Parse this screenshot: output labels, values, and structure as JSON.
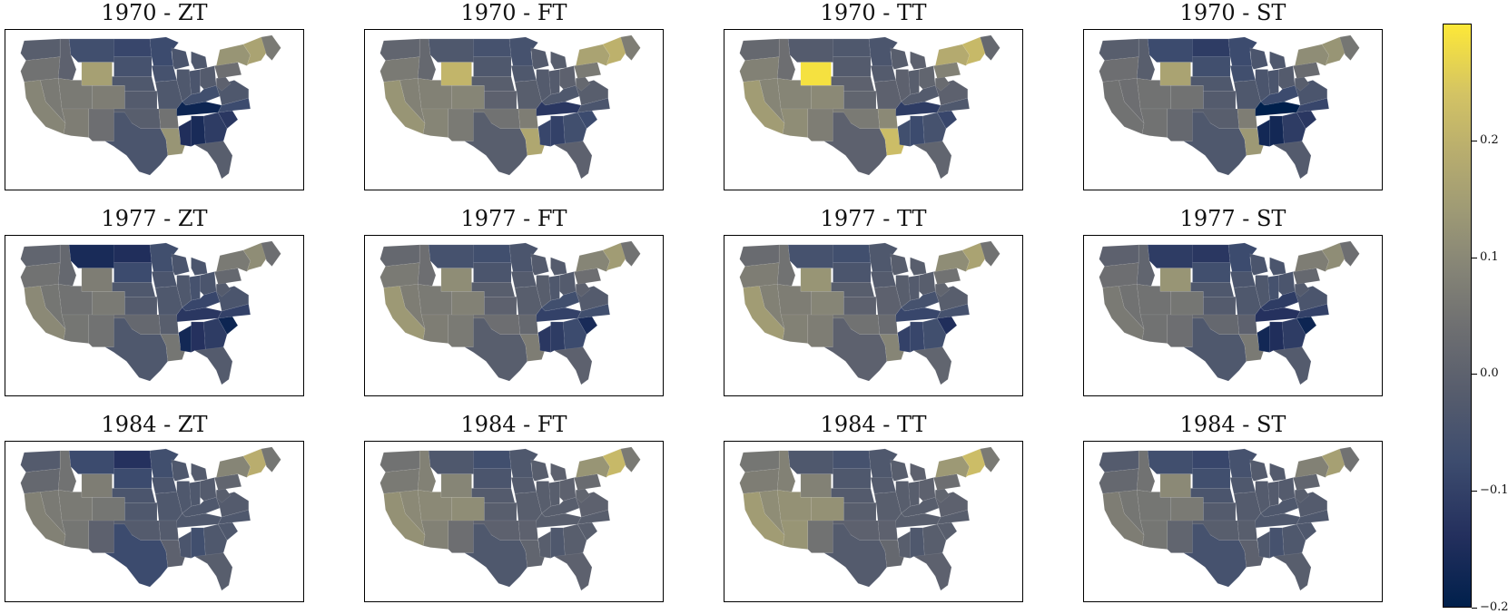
{
  "panels": [
    {
      "title": "1970 - ZT",
      "vals": {
        "WA": -0.03,
        "OR": 0.03,
        "CA": 0.08,
        "NV": 0.05,
        "ID": -0.02,
        "MT": -0.08,
        "WY": 0.15,
        "UT": 0.05,
        "AZ": 0.06,
        "NM": 0.02,
        "CO": 0.06,
        "ND": -0.1,
        "SD": -0.07,
        "NE": -0.05,
        "KS": -0.04,
        "OK": -0.03,
        "TX": -0.06,
        "MN": -0.09,
        "IA": -0.07,
        "MO": -0.05,
        "AR": 0.03,
        "LA": 0.12,
        "WI": -0.06,
        "IL": -0.05,
        "MS": -0.15,
        "MI": -0.05,
        "IN": -0.06,
        "OH": -0.04,
        "KY": -0.08,
        "TN": -0.18,
        "AL": -0.16,
        "GA": -0.12,
        "FL": -0.03,
        "SC": -0.13,
        "NC": -0.09,
        "VA": -0.05,
        "WV": -0.02,
        "PA": 0.02,
        "NY": 0.12,
        "NE_": 0.16,
        "ME": 0.05
      }
    },
    {
      "title": "1970 - FT",
      "vals": {
        "WA": -0.01,
        "OR": 0.05,
        "CA": 0.12,
        "NV": 0.07,
        "ID": 0.0,
        "MT": -0.05,
        "WY": 0.21,
        "UT": 0.07,
        "AZ": 0.08,
        "NM": 0.05,
        "CO": 0.08,
        "ND": -0.07,
        "SD": -0.05,
        "NE": -0.03,
        "KS": -0.02,
        "OK": 0.03,
        "TX": -0.03,
        "MN": -0.07,
        "IA": -0.05,
        "MO": -0.03,
        "AR": 0.06,
        "LA": 0.17,
        "WI": -0.04,
        "IL": -0.04,
        "MS": -0.1,
        "MI": -0.03,
        "IN": -0.04,
        "OH": -0.02,
        "KY": -0.05,
        "TN": -0.13,
        "AL": -0.11,
        "GA": -0.08,
        "FL": -0.02,
        "SC": -0.09,
        "NC": -0.06,
        "VA": -0.03,
        "WV": 0.0,
        "PA": 0.05,
        "NY": 0.16,
        "NE_": 0.2,
        "ME": 0.06
      }
    },
    {
      "title": "1970 - TT",
      "vals": {
        "WA": 0.0,
        "OR": 0.07,
        "CA": 0.14,
        "NV": 0.08,
        "ID": 0.02,
        "MT": -0.04,
        "WY": 0.29,
        "UT": 0.08,
        "AZ": 0.1,
        "NM": 0.06,
        "CO": 0.09,
        "ND": -0.05,
        "SD": -0.04,
        "NE": -0.02,
        "KS": -0.01,
        "OK": 0.05,
        "TX": -0.02,
        "MN": -0.06,
        "IA": -0.04,
        "MO": -0.02,
        "AR": 0.09,
        "LA": 0.23,
        "WI": -0.03,
        "IL": -0.02,
        "MS": -0.08,
        "MI": -0.02,
        "IN": -0.03,
        "OH": -0.01,
        "KY": -0.04,
        "TN": -0.12,
        "AL": -0.09,
        "GA": -0.07,
        "FL": -0.01,
        "SC": -0.1,
        "NC": -0.05,
        "VA": -0.02,
        "WV": 0.01,
        "PA": 0.07,
        "NY": 0.18,
        "NE_": 0.22,
        "ME": 0.0
      }
    },
    {
      "title": "1970 - ST",
      "vals": {
        "WA": -0.03,
        "OR": 0.02,
        "CA": 0.03,
        "NV": 0.02,
        "ID": -0.03,
        "MT": -0.09,
        "WY": 0.16,
        "UT": 0.03,
        "AZ": 0.03,
        "NM": 0.0,
        "CO": 0.03,
        "ND": -0.12,
        "SD": -0.08,
        "NE": -0.05,
        "KS": -0.04,
        "OK": -0.03,
        "TX": -0.05,
        "MN": -0.09,
        "IA": -0.08,
        "MO": -0.05,
        "AR": 0.06,
        "LA": 0.13,
        "WI": -0.06,
        "IL": -0.06,
        "MS": -0.17,
        "MI": -0.05,
        "IN": -0.06,
        "OH": -0.04,
        "KY": -0.09,
        "TN": -0.2,
        "AL": -0.17,
        "GA": -0.12,
        "FL": -0.04,
        "SC": -0.13,
        "NC": -0.1,
        "VA": -0.06,
        "WV": -0.03,
        "PA": 0.01,
        "NY": 0.1,
        "NE_": 0.12,
        "ME": 0.04
      }
    },
    {
      "title": "1977 - ZT",
      "vals": {
        "WA": -0.01,
        "OR": 0.03,
        "CA": 0.09,
        "NV": 0.04,
        "ID": 0.0,
        "MT": -0.16,
        "WY": 0.06,
        "UT": 0.03,
        "AZ": 0.04,
        "NM": 0.03,
        "CO": 0.05,
        "ND": -0.15,
        "SD": -0.09,
        "NE": -0.05,
        "KS": -0.04,
        "OK": 0.0,
        "TX": -0.05,
        "MN": -0.08,
        "IA": -0.06,
        "MO": -0.05,
        "AR": -0.03,
        "LA": 0.04,
        "WI": -0.06,
        "IL": -0.05,
        "MS": -0.17,
        "MI": -0.06,
        "IN": -0.07,
        "OH": -0.06,
        "KY": -0.1,
        "TN": -0.13,
        "AL": -0.14,
        "GA": -0.12,
        "FL": -0.04,
        "SC": -0.18,
        "NC": -0.11,
        "VA": -0.06,
        "WV": -0.04,
        "PA": 0.0,
        "NY": 0.05,
        "NE_": 0.1,
        "ME": 0.02
      }
    },
    {
      "title": "1977 - FT",
      "vals": {
        "WA": 0.0,
        "OR": 0.05,
        "CA": 0.13,
        "NV": 0.06,
        "ID": 0.02,
        "MT": -0.07,
        "WY": 0.1,
        "UT": 0.05,
        "AZ": 0.06,
        "NM": 0.05,
        "CO": 0.07,
        "ND": -0.08,
        "SD": -0.06,
        "NE": -0.03,
        "KS": -0.02,
        "OK": 0.02,
        "TX": -0.03,
        "MN": -0.06,
        "IA": -0.04,
        "MO": -0.03,
        "AR": 0.0,
        "LA": 0.06,
        "WI": -0.04,
        "IL": -0.03,
        "MS": -0.13,
        "MI": -0.04,
        "IN": -0.05,
        "OH": -0.04,
        "KY": -0.08,
        "TN": -0.11,
        "AL": -0.12,
        "GA": -0.09,
        "FL": -0.02,
        "SC": -0.16,
        "NC": -0.08,
        "VA": -0.04,
        "WV": -0.02,
        "PA": 0.02,
        "NY": 0.08,
        "NE_": 0.14,
        "ME": 0.03
      }
    },
    {
      "title": "1977 - TT",
      "vals": {
        "WA": 0.01,
        "OR": 0.06,
        "CA": 0.14,
        "NV": 0.07,
        "ID": 0.03,
        "MT": -0.07,
        "WY": 0.12,
        "UT": 0.06,
        "AZ": 0.07,
        "NM": 0.06,
        "CO": 0.08,
        "ND": -0.08,
        "SD": -0.06,
        "NE": -0.03,
        "KS": -0.02,
        "OK": 0.03,
        "TX": -0.02,
        "MN": -0.05,
        "IA": -0.04,
        "MO": -0.02,
        "AR": 0.01,
        "LA": 0.08,
        "WI": -0.03,
        "IL": -0.03,
        "MS": -0.11,
        "MI": -0.03,
        "IN": -0.04,
        "OH": -0.03,
        "KY": -0.07,
        "TN": -0.1,
        "AL": -0.1,
        "GA": -0.08,
        "FL": -0.01,
        "SC": -0.15,
        "NC": -0.07,
        "VA": -0.03,
        "WV": -0.01,
        "PA": 0.03,
        "NY": 0.1,
        "NE_": 0.16,
        "ME": 0.03
      }
    },
    {
      "title": "1977 - ST",
      "vals": {
        "WA": -0.02,
        "OR": 0.02,
        "CA": 0.05,
        "NV": 0.03,
        "ID": -0.01,
        "MT": -0.12,
        "WY": 0.12,
        "UT": 0.03,
        "AZ": 0.03,
        "NM": 0.02,
        "CO": 0.04,
        "ND": -0.13,
        "SD": -0.08,
        "NE": -0.05,
        "KS": -0.04,
        "OK": 0.0,
        "TX": -0.05,
        "MN": -0.09,
        "IA": -0.06,
        "MO": -0.05,
        "AR": -0.02,
        "LA": 0.05,
        "WI": -0.06,
        "IL": -0.05,
        "MS": -0.17,
        "MI": -0.06,
        "IN": -0.07,
        "OH": -0.06,
        "KY": -0.12,
        "TN": -0.14,
        "AL": -0.15,
        "GA": -0.12,
        "FL": -0.04,
        "SC": -0.18,
        "NC": -0.11,
        "VA": -0.06,
        "WV": -0.04,
        "PA": 0.0,
        "NY": 0.06,
        "NE_": 0.1,
        "ME": 0.02
      }
    },
    {
      "title": "1984 - ZT",
      "vals": {
        "WA": -0.04,
        "OR": 0.0,
        "CA": 0.07,
        "NV": 0.05,
        "ID": 0.03,
        "MT": -0.09,
        "WY": 0.06,
        "UT": 0.05,
        "AZ": 0.04,
        "NM": -0.02,
        "CO": 0.04,
        "ND": -0.14,
        "SD": -0.09,
        "NE": -0.06,
        "KS": -0.05,
        "OK": -0.04,
        "TX": -0.09,
        "MN": -0.08,
        "IA": -0.06,
        "MO": -0.05,
        "AR": -0.04,
        "LA": -0.02,
        "WI": -0.05,
        "IL": -0.05,
        "MS": -0.06,
        "MI": -0.04,
        "IN": -0.05,
        "OH": -0.04,
        "KY": -0.05,
        "TN": -0.05,
        "AL": -0.08,
        "GA": -0.05,
        "FL": -0.03,
        "SC": -0.05,
        "NC": -0.05,
        "VA": -0.04,
        "WV": -0.03,
        "PA": -0.01,
        "NY": 0.08,
        "NE_": 0.19,
        "ME": 0.04
      }
    },
    {
      "title": "1984 - FT",
      "vals": {
        "WA": 0.03,
        "OR": 0.05,
        "CA": 0.11,
        "NV": 0.09,
        "ID": 0.07,
        "MT": -0.05,
        "WY": 0.08,
        "UT": 0.09,
        "AZ": 0.07,
        "NM": 0.02,
        "CO": 0.1,
        "ND": -0.08,
        "SD": -0.06,
        "NE": -0.04,
        "KS": -0.03,
        "OK": -0.02,
        "TX": -0.05,
        "MN": -0.05,
        "IA": -0.04,
        "MO": -0.03,
        "AR": -0.02,
        "LA": -0.01,
        "WI": -0.03,
        "IL": -0.03,
        "MS": -0.03,
        "MI": -0.02,
        "IN": -0.03,
        "OH": -0.02,
        "KY": -0.03,
        "TN": -0.03,
        "AL": -0.05,
        "GA": -0.03,
        "FL": -0.02,
        "SC": -0.03,
        "NC": -0.03,
        "VA": -0.02,
        "WV": -0.01,
        "PA": 0.01,
        "NY": 0.12,
        "NE_": 0.22,
        "ME": 0.05
      }
    },
    {
      "title": "1984 - TT",
      "vals": {
        "WA": 0.04,
        "OR": 0.06,
        "CA": 0.14,
        "NV": 0.1,
        "ID": 0.07,
        "MT": -0.05,
        "WY": 0.07,
        "UT": 0.11,
        "AZ": 0.12,
        "NM": 0.03,
        "CO": 0.11,
        "ND": -0.07,
        "SD": -0.05,
        "NE": -0.04,
        "KS": -0.03,
        "OK": -0.02,
        "TX": -0.04,
        "MN": -0.05,
        "IA": -0.04,
        "MO": -0.03,
        "AR": -0.02,
        "LA": 0.0,
        "WI": -0.03,
        "IL": -0.03,
        "MS": -0.03,
        "MI": -0.02,
        "IN": -0.03,
        "OH": -0.02,
        "KY": -0.03,
        "TN": -0.03,
        "AL": -0.05,
        "GA": -0.03,
        "FL": -0.02,
        "SC": -0.03,
        "NC": -0.03,
        "VA": -0.02,
        "WV": -0.01,
        "PA": 0.02,
        "NY": 0.13,
        "NE_": 0.23,
        "ME": 0.05
      }
    },
    {
      "title": "1984 - ST",
      "vals": {
        "WA": -0.04,
        "OR": 0.0,
        "CA": 0.06,
        "NV": 0.04,
        "ID": 0.03,
        "MT": -0.08,
        "WY": 0.09,
        "UT": 0.04,
        "AZ": 0.04,
        "NM": -0.01,
        "CO": 0.05,
        "ND": -0.1,
        "SD": -0.08,
        "NE": -0.06,
        "KS": -0.04,
        "OK": -0.03,
        "TX": -0.07,
        "MN": -0.07,
        "IA": -0.05,
        "MO": -0.04,
        "AR": -0.03,
        "LA": -0.02,
        "WI": -0.04,
        "IL": -0.04,
        "MS": -0.05,
        "MI": -0.04,
        "IN": -0.04,
        "OH": -0.04,
        "KY": -0.05,
        "TN": -0.05,
        "AL": -0.07,
        "GA": -0.05,
        "FL": -0.03,
        "SC": -0.05,
        "NC": -0.05,
        "VA": -0.04,
        "WV": -0.03,
        "PA": -0.01,
        "NY": 0.07,
        "NE_": 0.15,
        "ME": 0.03
      }
    }
  ],
  "colorbar": {
    "min": -0.2,
    "max": 0.3,
    "ticks": [
      {
        "value": 0.2,
        "label": "0.2"
      },
      {
        "value": 0.1,
        "label": "0.1"
      },
      {
        "value": 0.0,
        "label": "0.0"
      },
      {
        "value": -0.1,
        "label": "−0.1"
      },
      {
        "value": -0.2,
        "label": "−0.2"
      }
    ],
    "colors": [
      "#00204c",
      "#232f5d",
      "#3d4c6e",
      "#575d6d",
      "#6e6f71",
      "#858476",
      "#9e9a75",
      "#b8ad6e",
      "#d3c364",
      "#fde838"
    ]
  }
}
